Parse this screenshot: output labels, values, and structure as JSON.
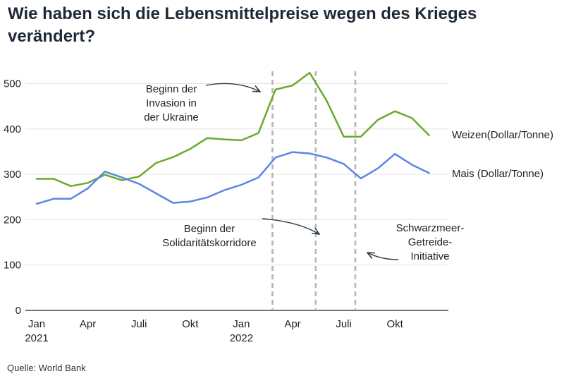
{
  "title": "Wie haben sich die Lebensmittelpreise wegen des Krieges verändert?",
  "source": "Quelle: World Bank",
  "colors": {
    "weizen": "#6aaa2b",
    "mais": "#5b86e5",
    "grid": "#e3e3e3",
    "event": "#b5b5b5",
    "axis": "#222222"
  },
  "chart_data": {
    "type": "line",
    "x": [
      "2021-01",
      "2021-02",
      "2021-03",
      "2021-04",
      "2021-05",
      "2021-06",
      "2021-07",
      "2021-08",
      "2021-09",
      "2021-10",
      "2021-11",
      "2021-12",
      "2022-01",
      "2022-02",
      "2022-03",
      "2022-04",
      "2022-05",
      "2022-06",
      "2022-07",
      "2022-08",
      "2022-09",
      "2022-10",
      "2022-11",
      "2022-12"
    ],
    "x_ticks": [
      {
        "x": "2021-01",
        "label": "Jan",
        "sublabel": "2021"
      },
      {
        "x": "2021-04",
        "label": "Apr"
      },
      {
        "x": "2021-07",
        "label": "Juli"
      },
      {
        "x": "2021-10",
        "label": "Okt"
      },
      {
        "x": "2022-01",
        "label": "Jan",
        "sublabel": "2022"
      },
      {
        "x": "2022-04",
        "label": "Apr"
      },
      {
        "x": "2022-07",
        "label": "Juli"
      },
      {
        "x": "2022-10",
        "label": "Okt"
      }
    ],
    "y_ticks": [
      0,
      100,
      200,
      300,
      400,
      500
    ],
    "ylim": [
      0,
      530
    ],
    "grid": true,
    "series": [
      {
        "name": "Weizen(Dollar/Tonne)",
        "color": "#6aaa2b",
        "values": [
          290,
          290,
          274,
          281,
          299,
          287,
          295,
          325,
          338,
          356,
          380,
          377,
          375,
          391,
          487,
          496,
          524,
          462,
          383,
          383,
          420,
          439,
          424,
          386
        ]
      },
      {
        "name": "Mais (Dollar/Tonne)",
        "color": "#5b86e5",
        "values": [
          235,
          246,
          246,
          269,
          306,
          293,
          279,
          258,
          237,
          240,
          249,
          265,
          277,
          293,
          337,
          349,
          346,
          337,
          323,
          291,
          313,
          345,
          321,
          303
        ]
      }
    ],
    "events": [
      {
        "x": "2022-02-24",
        "label": [
          "Beginn der",
          "Invasion in",
          "der Ukraine"
        ]
      },
      {
        "x": "2022-05-12",
        "label": [
          "Beginn der",
          "Solidaritätskorridore"
        ]
      },
      {
        "x": "2022-07-22",
        "label": [
          "Schwarzmeer-",
          "Getreide-",
          "Initiative"
        ]
      }
    ]
  }
}
